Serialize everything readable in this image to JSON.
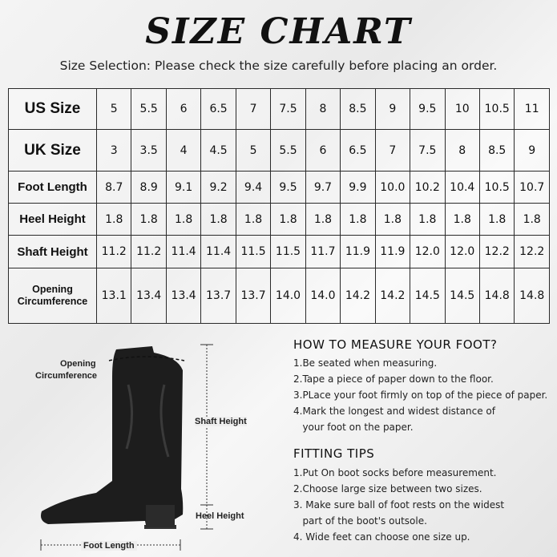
{
  "title": "SIZE CHART",
  "subtitle": "Size Selection: Please check the size carefully before placing an order.",
  "table": {
    "rows": [
      {
        "label": "US Size",
        "values": [
          "5",
          "5.5",
          "6",
          "6.5",
          "7",
          "7.5",
          "8",
          "8.5",
          "9",
          "9.5",
          "10",
          "10.5",
          "11"
        ]
      },
      {
        "label": "UK Size",
        "values": [
          "3",
          "3.5",
          "4",
          "4.5",
          "5",
          "5.5",
          "6",
          "6.5",
          "7",
          "7.5",
          "8",
          "8.5",
          "9"
        ]
      },
      {
        "label": "Foot Length",
        "values": [
          "8.7",
          "8.9",
          "9.1",
          "9.2",
          "9.4",
          "9.5",
          "9.7",
          "9.9",
          "10.0",
          "10.2",
          "10.4",
          "10.5",
          "10.7"
        ]
      },
      {
        "label": "Heel Height",
        "values": [
          "1.8",
          "1.8",
          "1.8",
          "1.8",
          "1.8",
          "1.8",
          "1.8",
          "1.8",
          "1.8",
          "1.8",
          "1.8",
          "1.8",
          "1.8"
        ]
      },
      {
        "label": "Shaft Height",
        "values": [
          "11.2",
          "11.2",
          "11.4",
          "11.4",
          "11.5",
          "11.5",
          "11.7",
          "11.9",
          "11.9",
          "12.0",
          "12.0",
          "12.2",
          "12.2"
        ]
      },
      {
        "label": "Opening Circumference",
        "values": [
          "13.1",
          "13.4",
          "13.4",
          "13.7",
          "13.7",
          "14.0",
          "14.0",
          "14.2",
          "14.2",
          "14.5",
          "14.5",
          "14.8",
          "14.8"
        ]
      }
    ]
  },
  "diagram": {
    "opening_line1": "Opening",
    "opening_line2": "Circumference",
    "shaft": "Shaft Height",
    "heel": "Heel Height",
    "foot": "Foot Length"
  },
  "measure": {
    "heading": "HOW TO MEASURE YOUR FOOT?",
    "lines": [
      "1.Be seated when measuring.",
      "2.Tape a piece of paper down to the floor.",
      "3.PLace your foot firmly on top of the piece of paper.",
      "4.Mark the longest and widest distance of",
      "   your foot on the paper."
    ]
  },
  "tips": {
    "heading": "FITTING TIPS",
    "lines": [
      "1.Put On boot socks before measurement.",
      "2.Choose large size between two sizes.",
      "3. Make sure ball of foot rests on the widest",
      "   part of the boot's outsole.",
      "4. Wide feet can choose one size up."
    ]
  }
}
